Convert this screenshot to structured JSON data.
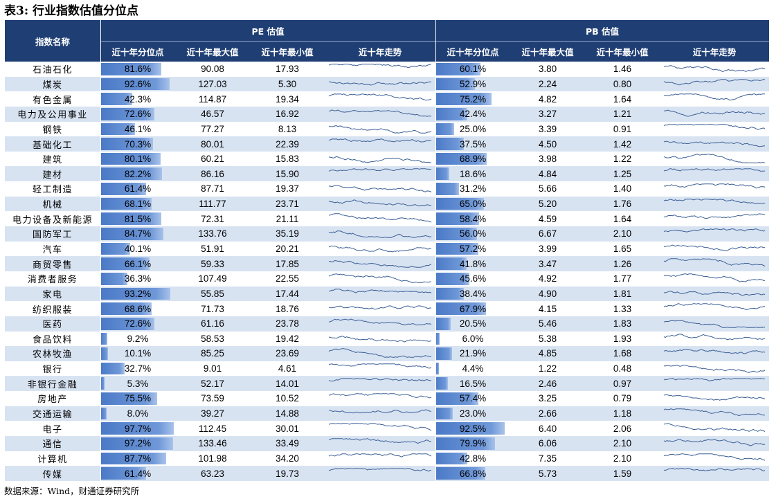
{
  "title": "表3: 行业指数估值分位点",
  "header": {
    "name_col": "指数名称",
    "pe_group": "PE 估值",
    "pb_group": "PB 估值",
    "sub_cols": [
      "近十年分位点",
      "近十年最大值",
      "近十年最小值",
      "近十年走势"
    ]
  },
  "rows": [
    {
      "name": "石油石化",
      "pe_pct": "81.6%",
      "pe_max": "90.08",
      "pe_min": "17.93",
      "pb_pct": "60.1%",
      "pb_max": "3.80",
      "pb_min": "1.46"
    },
    {
      "name": "煤炭",
      "pe_pct": "92.6%",
      "pe_max": "127.03",
      "pe_min": "5.30",
      "pb_pct": "52.9%",
      "pb_max": "2.24",
      "pb_min": "0.80"
    },
    {
      "name": "有色金属",
      "pe_pct": "42.3%",
      "pe_max": "114.87",
      "pe_min": "19.34",
      "pb_pct": "75.2%",
      "pb_max": "4.82",
      "pb_min": "1.64"
    },
    {
      "name": "电力及公用事业",
      "pe_pct": "72.6%",
      "pe_max": "46.57",
      "pe_min": "16.92",
      "pb_pct": "42.4%",
      "pb_max": "3.27",
      "pb_min": "1.21"
    },
    {
      "name": "钢铁",
      "pe_pct": "46.1%",
      "pe_max": "77.27",
      "pe_min": "8.13",
      "pb_pct": "25.0%",
      "pb_max": "3.39",
      "pb_min": "0.91"
    },
    {
      "name": "基础化工",
      "pe_pct": "70.3%",
      "pe_max": "80.01",
      "pe_min": "22.39",
      "pb_pct": "37.5%",
      "pb_max": "4.50",
      "pb_min": "1.42"
    },
    {
      "name": "建筑",
      "pe_pct": "80.1%",
      "pe_max": "60.21",
      "pe_min": "15.83",
      "pb_pct": "68.9%",
      "pb_max": "3.98",
      "pb_min": "1.22"
    },
    {
      "name": "建材",
      "pe_pct": "82.2%",
      "pe_max": "86.16",
      "pe_min": "15.90",
      "pb_pct": "18.6%",
      "pb_max": "4.84",
      "pb_min": "1.25"
    },
    {
      "name": "轻工制造",
      "pe_pct": "61.4%",
      "pe_max": "87.71",
      "pe_min": "19.37",
      "pb_pct": "31.2%",
      "pb_max": "5.66",
      "pb_min": "1.40"
    },
    {
      "name": "机械",
      "pe_pct": "68.1%",
      "pe_max": "111.77",
      "pe_min": "23.71",
      "pb_pct": "65.0%",
      "pb_max": "5.20",
      "pb_min": "1.76"
    },
    {
      "name": "电力设备及新能源",
      "pe_pct": "81.5%",
      "pe_max": "72.31",
      "pe_min": "21.11",
      "pb_pct": "58.4%",
      "pb_max": "4.59",
      "pb_min": "1.64"
    },
    {
      "name": "国防军工",
      "pe_pct": "84.7%",
      "pe_max": "133.76",
      "pe_min": "35.19",
      "pb_pct": "56.0%",
      "pb_max": "6.67",
      "pb_min": "2.10"
    },
    {
      "name": "汽车",
      "pe_pct": "40.1%",
      "pe_max": "51.91",
      "pe_min": "20.21",
      "pb_pct": "57.2%",
      "pb_max": "3.99",
      "pb_min": "1.65"
    },
    {
      "name": "商贸零售",
      "pe_pct": "66.1%",
      "pe_max": "59.33",
      "pe_min": "17.85",
      "pb_pct": "41.8%",
      "pb_max": "3.47",
      "pb_min": "1.26"
    },
    {
      "name": "消费者服务",
      "pe_pct": "36.3%",
      "pe_max": "107.49",
      "pe_min": "22.55",
      "pb_pct": "45.6%",
      "pb_max": "4.92",
      "pb_min": "1.77"
    },
    {
      "name": "家电",
      "pe_pct": "93.2%",
      "pe_max": "55.85",
      "pe_min": "17.44",
      "pb_pct": "38.4%",
      "pb_max": "4.90",
      "pb_min": "1.81"
    },
    {
      "name": "纺织服装",
      "pe_pct": "68.6%",
      "pe_max": "71.73",
      "pe_min": "18.76",
      "pb_pct": "67.9%",
      "pb_max": "4.15",
      "pb_min": "1.33"
    },
    {
      "name": "医药",
      "pe_pct": "72.6%",
      "pe_max": "61.16",
      "pe_min": "23.78",
      "pb_pct": "20.5%",
      "pb_max": "5.46",
      "pb_min": "1.83"
    },
    {
      "name": "食品饮料",
      "pe_pct": "9.2%",
      "pe_max": "58.53",
      "pe_min": "19.42",
      "pb_pct": "6.0%",
      "pb_max": "5.38",
      "pb_min": "1.93"
    },
    {
      "name": "农林牧渔",
      "pe_pct": "10.1%",
      "pe_max": "85.25",
      "pe_min": "23.69",
      "pb_pct": "21.9%",
      "pb_max": "4.85",
      "pb_min": "1.68"
    },
    {
      "name": "银行",
      "pe_pct": "32.7%",
      "pe_max": "9.01",
      "pe_min": "4.61",
      "pb_pct": "4.4%",
      "pb_max": "1.22",
      "pb_min": "0.48"
    },
    {
      "name": "非银行金融",
      "pe_pct": "5.3%",
      "pe_max": "52.17",
      "pe_min": "14.01",
      "pb_pct": "16.5%",
      "pb_max": "2.46",
      "pb_min": "0.97"
    },
    {
      "name": "房地产",
      "pe_pct": "75.5%",
      "pe_max": "73.59",
      "pe_min": "10.52",
      "pb_pct": "57.4%",
      "pb_max": "3.25",
      "pb_min": "0.79"
    },
    {
      "name": "交通运输",
      "pe_pct": "8.0%",
      "pe_max": "39.27",
      "pe_min": "14.88",
      "pb_pct": "23.0%",
      "pb_max": "2.66",
      "pb_min": "1.18"
    },
    {
      "name": "电子",
      "pe_pct": "97.7%",
      "pe_max": "112.45",
      "pe_min": "30.01",
      "pb_pct": "92.5%",
      "pb_max": "6.40",
      "pb_min": "2.06"
    },
    {
      "name": "通信",
      "pe_pct": "97.2%",
      "pe_max": "133.46",
      "pe_min": "33.49",
      "pb_pct": "79.9%",
      "pb_max": "6.06",
      "pb_min": "2.10"
    },
    {
      "name": "计算机",
      "pe_pct": "87.7%",
      "pe_max": "101.98",
      "pe_min": "34.20",
      "pb_pct": "42.8%",
      "pb_max": "7.35",
      "pb_min": "2.10"
    },
    {
      "name": "传媒",
      "pe_pct": "61.4%",
      "pe_max": "63.23",
      "pe_min": "19.73",
      "pb_pct": "66.8%",
      "pb_max": "5.73",
      "pb_min": "1.59"
    }
  ],
  "footer": "数据来源：Wind，财通证券研究所",
  "colors": {
    "header_bg": "#1f3f74",
    "row_alt": "#d8e3f2",
    "bar": "#5b87cf",
    "spark": "#3a5f95"
  }
}
